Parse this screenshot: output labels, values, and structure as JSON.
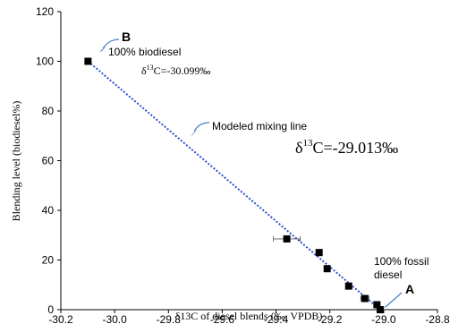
{
  "chart_data": {
    "type": "scatter",
    "xlabel": "δ13C of diesel blends (‰, VPDB)",
    "ylabel": "Blending level (biodiesel%)",
    "xlim": [
      -30.2,
      -28.8
    ],
    "ylim": [
      0,
      120
    ],
    "x_ticks": [
      "-30.2",
      "-30.0",
      "-29.8",
      "-29.6",
      "-29.4",
      "-29.2",
      "-29.0",
      "-28.8"
    ],
    "y_ticks": [
      "0",
      "20",
      "40",
      "60",
      "80",
      "100",
      "120"
    ],
    "points": [
      {
        "x": -30.099,
        "y": 100,
        "xerr": 0
      },
      {
        "x": -29.36,
        "y": 28.5,
        "xerr": 0.05
      },
      {
        "x": -29.24,
        "y": 23,
        "xerr": 0
      },
      {
        "x": -29.21,
        "y": 16.5,
        "xerr": 0.01
      },
      {
        "x": -29.13,
        "y": 9.5,
        "xerr": 0.01
      },
      {
        "x": -29.07,
        "y": 4.5,
        "xerr": 0.015
      },
      {
        "x": -29.025,
        "y": 2,
        "xerr": 0.01
      },
      {
        "x": -29.013,
        "y": 0,
        "xerr": 0
      }
    ],
    "mixing_line": {
      "x": [
        -30.099,
        -29.013
      ],
      "y": [
        100,
        0
      ],
      "color": "#2e4fd6",
      "style": "dotted"
    },
    "marker_color": "#000000",
    "arrow_color": "#4a7fc8",
    "grid": false,
    "annotations": {
      "point_b": "B",
      "point_a": "A",
      "biodiesel": "100% biodiesel",
      "fossil_1": "100% fossil",
      "fossil_2": "diesel",
      "mixing": "Modeled mixing line",
      "d13c_prefix": "δ",
      "d13c_sup": "13",
      "biodiesel_value": "C=-30.099‰",
      "fossil_value": "C=-29.013‰"
    }
  }
}
